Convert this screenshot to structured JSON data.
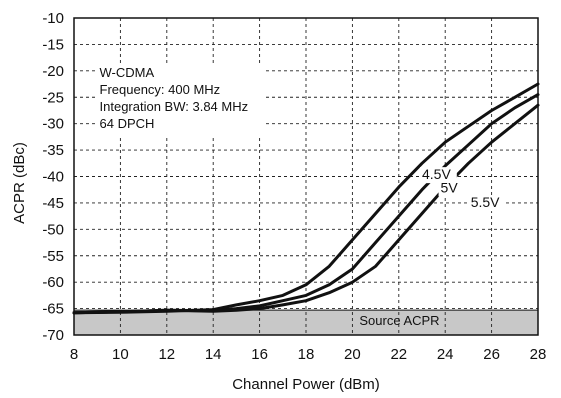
{
  "chart_data": {
    "type": "line",
    "title": "",
    "xlabel": "Channel Power (dBm)",
    "ylabel": "ACPR (dBc)",
    "xlim": [
      8,
      28
    ],
    "ylim": [
      -70,
      -10
    ],
    "xticks": [
      8,
      10,
      12,
      14,
      16,
      18,
      20,
      22,
      24,
      26,
      28
    ],
    "yticks": [
      -10,
      -15,
      -20,
      -25,
      -30,
      -35,
      -40,
      -45,
      -50,
      -55,
      -60,
      -65,
      -70
    ],
    "grid": true,
    "grid_style": "dashed",
    "annotation_lines": [
      "W-CDMA",
      "Frequency: 400 MHz",
      "Integration BW: 3.84 MHz",
      "64 DPCH"
    ],
    "reference_band": {
      "label": "Source ACPR",
      "y_range": [
        -70,
        -65.3
      ],
      "color": "#c8c8c8"
    },
    "series": [
      {
        "name": "4.5V",
        "x": [
          8,
          10,
          12,
          14,
          15,
          16,
          17,
          18,
          19,
          20,
          21,
          22,
          23,
          24,
          25,
          26,
          27,
          28
        ],
        "y": [
          -65.8,
          -65.7,
          -65.5,
          -65.2,
          -64.3,
          -63.5,
          -62.5,
          -60.5,
          -57.0,
          -52.0,
          -47.0,
          -42.0,
          -37.5,
          -33.5,
          -30.5,
          -27.5,
          -25.0,
          -22.5
        ]
      },
      {
        "name": "5V",
        "x": [
          8,
          10,
          12,
          14,
          15,
          16,
          17,
          18,
          19,
          20,
          21,
          22,
          23,
          24,
          25,
          26,
          27,
          28
        ],
        "y": [
          -65.8,
          -65.6,
          -65.3,
          -65.4,
          -65.0,
          -64.5,
          -63.5,
          -62.5,
          -60.5,
          -57.5,
          -52.5,
          -47.5,
          -42.5,
          -38.0,
          -34.0,
          -30.0,
          -27.0,
          -24.5
        ]
      },
      {
        "name": "5.5V",
        "x": [
          8,
          10,
          12,
          14,
          15,
          16,
          17,
          18,
          19,
          20,
          21,
          22,
          23,
          24,
          25,
          26,
          27,
          28
        ],
        "y": [
          -65.8,
          -65.6,
          -65.3,
          -65.5,
          -65.3,
          -65.0,
          -64.3,
          -63.5,
          -62.0,
          -60.0,
          -57.0,
          -52.0,
          -47.0,
          -42.0,
          -37.5,
          -33.5,
          -30.0,
          -26.5
        ]
      }
    ],
    "series_labels": [
      {
        "text": "4.5V",
        "x": 23.0,
        "y": -40.5
      },
      {
        "text": "5V",
        "x": 23.8,
        "y": -43.0
      },
      {
        "text": "5.5V",
        "x": 25.1,
        "y": -45.8
      }
    ]
  }
}
